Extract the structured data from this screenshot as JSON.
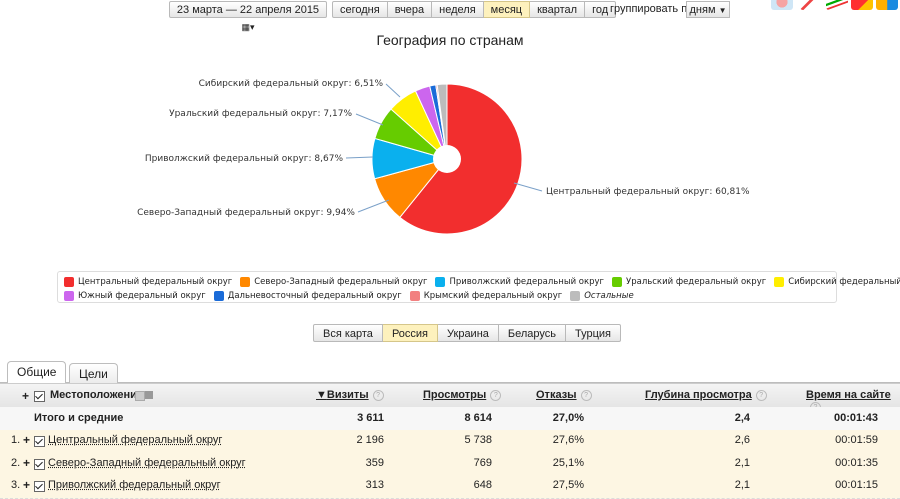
{
  "toolbar": {
    "date_range": "23 марта — 22 апреля 2015",
    "periods": [
      "сегодня",
      "вчера",
      "неделя",
      "месяц",
      "квартал",
      "год"
    ],
    "active_period": "месяц",
    "group_label": "группировать по",
    "group_value": "дням"
  },
  "chart": {
    "title": "География по странам"
  },
  "chart_data": {
    "type": "pie",
    "title": "География по странам",
    "slices": [
      {
        "name": "Центральный федеральный округ",
        "value": 60.81,
        "label": "Центральный федеральный округ: 60,81%",
        "color": "#f22e2e"
      },
      {
        "name": "Северо-Западный федеральный округ",
        "value": 9.94,
        "label": "Северо-Западный федеральный округ: 9,94%",
        "color": "#ff8800"
      },
      {
        "name": "Приволжский федеральный округ",
        "value": 8.67,
        "label": "Приволжский федеральный округ: 8,67%",
        "color": "#0ab0ee"
      },
      {
        "name": "Уральский федеральный округ",
        "value": 7.17,
        "label": "Уральский федеральный округ: 7,17%",
        "color": "#66cc00"
      },
      {
        "name": "Сибирский федеральный округ",
        "value": 6.51,
        "label": "Сибирский федеральный округ: 6,51%",
        "color": "#ffee00"
      },
      {
        "name": "Южный федеральный округ",
        "value": 3.2,
        "label": "",
        "color": "#cc66ee"
      },
      {
        "name": "Дальневосточный федеральный округ",
        "value": 1.3,
        "label": "",
        "color": "#1a6bd8"
      },
      {
        "name": "Крымский федеральный округ",
        "value": 0.3,
        "label": "",
        "color": "#f28080"
      },
      {
        "name": "Остальные",
        "value": 2.1,
        "label": "",
        "color": "#bcbcbc"
      }
    ],
    "legend_position": "bottom"
  },
  "region_tabs": [
    "Вся карта",
    "Россия",
    "Украина",
    "Беларусь",
    "Турция"
  ],
  "active_region": "Россия",
  "tabs": [
    "Общие",
    "Цели"
  ],
  "table": {
    "columns": [
      "Местоположение",
      "Визиты",
      "Просмотры",
      "Отказы",
      "Глубина просмотра",
      "Время на сайте"
    ],
    "help_mark": "?",
    "total": {
      "label": "Итого и средние",
      "visits": "3 611",
      "views": "8 614",
      "bounce": "27,0%",
      "depth": "2,4",
      "time": "00:01:43"
    },
    "rows": [
      {
        "num": "1.",
        "name": "Центральный федеральный округ",
        "visits": "2 196",
        "views": "5 738",
        "bounce": "27,6%",
        "depth": "2,6",
        "time": "00:01:59"
      },
      {
        "num": "2.",
        "name": "Северо-Западный федеральный округ",
        "visits": "359",
        "views": "769",
        "bounce": "25,1%",
        "depth": "2,1",
        "time": "00:01:35"
      },
      {
        "num": "3.",
        "name": "Приволжский федеральный округ",
        "visits": "313",
        "views": "648",
        "bounce": "27,5%",
        "depth": "2,1",
        "time": "00:01:15"
      }
    ]
  },
  "colors": {
    "active_tab": "#fdf1bd",
    "data_row": "#fdf6e3"
  }
}
